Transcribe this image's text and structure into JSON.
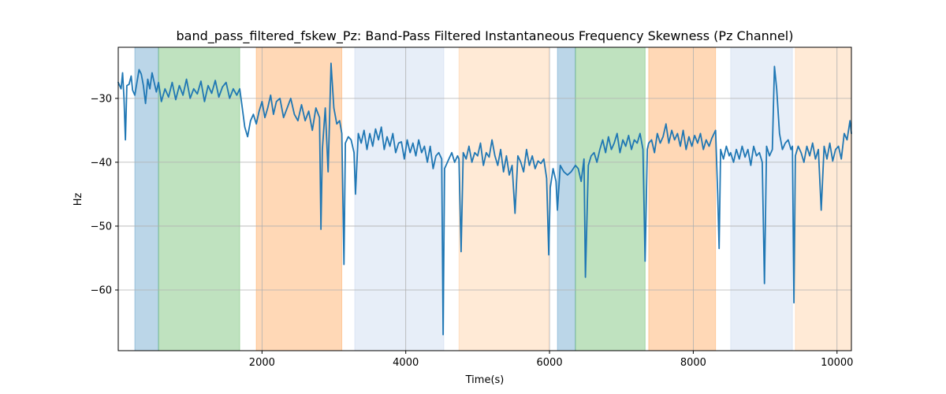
{
  "chart_data": {
    "type": "line",
    "title": "band_pass_filtered_fskew_Pz: Band-Pass Filtered Instantaneous Frequency Skewness (Pz Channel)",
    "xlabel": "Time(s)",
    "ylabel": "Hz",
    "xlim": [
      0,
      10200
    ],
    "ylim": [
      -69.5,
      -22
    ],
    "xticks": [
      2000,
      4000,
      6000,
      8000,
      10000
    ],
    "yticks": [
      -60,
      -50,
      -40,
      -30
    ],
    "grid": true,
    "line_color": "#1f77b4",
    "bands": [
      {
        "x0": 230,
        "x1": 560,
        "color": "#1f77b4",
        "opacity": 0.3
      },
      {
        "x0": 560,
        "x1": 1690,
        "color": "#2ca02c",
        "opacity": 0.3
      },
      {
        "x0": 1920,
        "x1": 3110,
        "color": "#ff7f0e",
        "opacity": 0.3
      },
      {
        "x0": 3290,
        "x1": 4530,
        "color": "#aec7e8",
        "opacity": 0.3
      },
      {
        "x0": 4740,
        "x1": 5990,
        "color": "#ffbb78",
        "opacity": 0.3
      },
      {
        "x0": 6110,
        "x1": 6360,
        "color": "#1f77b4",
        "opacity": 0.3
      },
      {
        "x0": 6360,
        "x1": 7330,
        "color": "#2ca02c",
        "opacity": 0.3
      },
      {
        "x0": 7380,
        "x1": 8310,
        "color": "#ff7f0e",
        "opacity": 0.3
      },
      {
        "x0": 8520,
        "x1": 9380,
        "color": "#aec7e8",
        "opacity": 0.3
      },
      {
        "x0": 9420,
        "x1": 10200,
        "color": "#ffbb78",
        "opacity": 0.3
      }
    ],
    "series": [
      {
        "x": [
          0,
          40,
          60,
          80,
          100,
          120,
          150,
          180,
          200,
          230,
          260,
          290,
          320,
          350,
          380,
          410,
          440,
          470,
          500,
          530,
          560,
          600,
          650,
          700,
          750,
          800,
          850,
          900,
          950,
          1000,
          1050,
          1100,
          1150,
          1200,
          1250,
          1300,
          1350,
          1400,
          1450,
          1500,
          1550,
          1600,
          1650,
          1690,
          1720,
          1760,
          1800,
          1840,
          1880,
          1920,
          1960,
          2000,
          2040,
          2080,
          2120,
          2160,
          2200,
          2250,
          2300,
          2350,
          2400,
          2450,
          2500,
          2550,
          2600,
          2650,
          2700,
          2750,
          2800,
          2820,
          2840,
          2880,
          2920,
          2940,
          2960,
          3000,
          3040,
          3080,
          3110,
          3140,
          3160,
          3200,
          3240,
          3280,
          3300,
          3340,
          3380,
          3420,
          3460,
          3500,
          3540,
          3580,
          3620,
          3660,
          3700,
          3740,
          3780,
          3820,
          3860,
          3900,
          3940,
          3980,
          4020,
          4060,
          4100,
          4140,
          4180,
          4220,
          4260,
          4300,
          4340,
          4380,
          4420,
          4460,
          4500,
          4520,
          4540,
          4560,
          4600,
          4640,
          4680,
          4720,
          4740,
          4770,
          4800,
          4840,
          4880,
          4920,
          4960,
          5000,
          5040,
          5080,
          5120,
          5160,
          5200,
          5240,
          5280,
          5320,
          5360,
          5400,
          5440,
          5480,
          5520,
          5560,
          5600,
          5640,
          5680,
          5720,
          5760,
          5800,
          5840,
          5880,
          5920,
          5960,
          5990,
          6010,
          6050,
          6090,
          6110,
          6150,
          6200,
          6250,
          6300,
          6360,
          6400,
          6440,
          6480,
          6500,
          6540,
          6580,
          6620,
          6660,
          6700,
          6740,
          6780,
          6820,
          6860,
          6900,
          6940,
          6980,
          7020,
          7060,
          7100,
          7140,
          7180,
          7220,
          7260,
          7300,
          7330,
          7360,
          7380,
          7420,
          7460,
          7500,
          7540,
          7580,
          7620,
          7660,
          7700,
          7740,
          7780,
          7820,
          7860,
          7900,
          7940,
          7980,
          8020,
          8060,
          8100,
          8140,
          8180,
          8220,
          8260,
          8310,
          8340,
          8360,
          8380,
          8420,
          8460,
          8500,
          8520,
          8560,
          8600,
          8640,
          8680,
          8720,
          8760,
          8800,
          8840,
          8880,
          8920,
          8960,
          8990,
          9020,
          9060,
          9100,
          9130,
          9160,
          9200,
          9240,
          9280,
          9320,
          9360,
          9380,
          9400,
          9420,
          9460,
          9500,
          9540,
          9580,
          9620,
          9660,
          9700,
          9740,
          9780,
          9820,
          9860,
          9900,
          9940,
          9980,
          10020,
          10060,
          10100,
          10140,
          10180,
          10200
        ],
        "y": [
          -27.5,
          -28.5,
          -26,
          -30,
          -36.5,
          -28,
          -27.8,
          -26.5,
          -28.7,
          -29.5,
          -27.5,
          -25.5,
          -26.2,
          -28,
          -30.8,
          -27,
          -28.5,
          -26,
          -27.5,
          -29,
          -27.5,
          -30.5,
          -28.5,
          -29.8,
          -27.5,
          -30.2,
          -28,
          -29.5,
          -27,
          -30,
          -28.5,
          -29.3,
          -27.3,
          -30.5,
          -28,
          -29.2,
          -27.2,
          -29.8,
          -28.2,
          -27.5,
          -30,
          -28.5,
          -29.5,
          -28.5,
          -31,
          -34.5,
          -36,
          -33.5,
          -32.5,
          -34,
          -32,
          -30.5,
          -33,
          -31.5,
          -29.5,
          -32.5,
          -30.5,
          -30,
          -33,
          -31.5,
          -30,
          -32.5,
          -33.5,
          -31,
          -33.5,
          -32,
          -35,
          -31.5,
          -33,
          -50.5,
          -38,
          -31.5,
          -41.5,
          -33,
          -24.5,
          -31.5,
          -34,
          -33.5,
          -35.5,
          -56,
          -37,
          -36,
          -36.5,
          -38.5,
          -45,
          -35.5,
          -37,
          -35,
          -38,
          -35.5,
          -37.5,
          -34.8,
          -36.5,
          -34.5,
          -38,
          -36,
          -37.5,
          -35.5,
          -38.5,
          -37,
          -36.8,
          -39.5,
          -36.5,
          -38.5,
          -37,
          -39,
          -36.5,
          -38.5,
          -37.5,
          -40,
          -37.5,
          -41,
          -39,
          -38.5,
          -39.5,
          -67,
          -41,
          -40.5,
          -39.5,
          -38.5,
          -40,
          -39,
          -39.5,
          -54,
          -38.5,
          -39.5,
          -37.5,
          -40,
          -38.5,
          -39,
          -37,
          -40.5,
          -38.5,
          -39.2,
          -36.5,
          -39,
          -40.5,
          -38,
          -41.5,
          -39,
          -42,
          -40.5,
          -48,
          -39,
          -40,
          -41.5,
          -38,
          -40.5,
          -39,
          -41,
          -39.8,
          -40.2,
          -39.5,
          -42.5,
          -54.5,
          -44,
          -41,
          -43,
          -47.5,
          -40.5,
          -41.5,
          -42,
          -41.5,
          -40.5,
          -41,
          -43,
          -39.5,
          -58,
          -40.5,
          -39,
          -38.5,
          -40,
          -38,
          -36.5,
          -38.5,
          -36,
          -38,
          -37,
          -35.5,
          -38.5,
          -36.5,
          -37.5,
          -35.8,
          -38,
          -36.5,
          -37,
          -35.5,
          -38,
          -55.5,
          -38,
          -37,
          -36.5,
          -38.5,
          -35.5,
          -37,
          -36,
          -34,
          -37,
          -35,
          -36.5,
          -35.5,
          -37.5,
          -35,
          -38,
          -36,
          -37.5,
          -35.8,
          -37,
          -35.5,
          -38,
          -36.5,
          -37.5,
          -36.2,
          -35,
          -45,
          -53.5,
          -38,
          -39.5,
          -37.5,
          -39,
          -38.5,
          -40,
          -38,
          -39.5,
          -37.5,
          -39.2,
          -38,
          -40.5,
          -37.5,
          -39,
          -38.5,
          -40,
          -59,
          -37.5,
          -39,
          -38,
          -25,
          -28.5,
          -35.5,
          -38,
          -37,
          -36.5,
          -38,
          -37.5,
          -62,
          -39,
          -37.5,
          -38.5,
          -40,
          -37.5,
          -39,
          -37,
          -39.5,
          -38,
          -47.5,
          -37.5,
          -39.5,
          -37,
          -39.8,
          -38,
          -37.5,
          -39.5,
          -35.5,
          -36.5,
          -33.5,
          -35.5
        ]
      }
    ]
  }
}
